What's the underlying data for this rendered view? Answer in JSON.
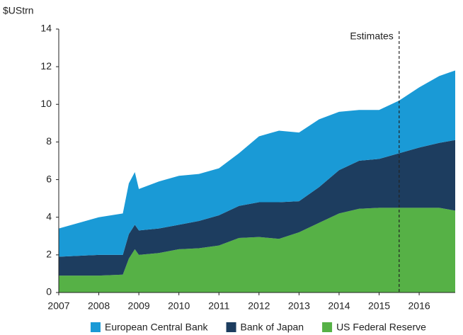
{
  "chart_data": {
    "type": "stacked_area",
    "y_label": "$UStrn",
    "annotation": {
      "text": "Estimates",
      "x": 2015.5
    },
    "x": [
      2007.0,
      2008.0,
      2008.6,
      2008.75,
      2008.9,
      2009.0,
      2009.5,
      2010.0,
      2010.5,
      2011.0,
      2011.5,
      2012.0,
      2012.5,
      2013.0,
      2013.5,
      2014.0,
      2014.5,
      2015.0,
      2015.5,
      2016.0,
      2016.5,
      2016.9
    ],
    "series": [
      {
        "name": "US Federal Reserve",
        "color": "#56b146",
        "values": [
          0.9,
          0.9,
          0.95,
          1.8,
          2.3,
          2.0,
          2.1,
          2.3,
          2.35,
          2.5,
          2.9,
          2.95,
          2.85,
          3.2,
          3.7,
          4.2,
          4.45,
          4.5,
          4.5,
          4.5,
          4.5,
          4.35
        ]
      },
      {
        "name": "Bank of Japan",
        "color": "#1d3d5f",
        "values": [
          1.0,
          1.1,
          1.05,
          1.3,
          1.3,
          1.3,
          1.3,
          1.3,
          1.45,
          1.6,
          1.7,
          1.85,
          1.95,
          1.65,
          1.9,
          2.3,
          2.55,
          2.6,
          2.9,
          3.2,
          3.45,
          3.75
        ]
      },
      {
        "name": "European Central Bank",
        "color": "#1a9ad6",
        "values": [
          1.5,
          2.0,
          2.2,
          2.7,
          2.8,
          2.2,
          2.5,
          2.6,
          2.5,
          2.5,
          2.8,
          3.5,
          3.8,
          3.65,
          3.6,
          3.1,
          2.7,
          2.6,
          2.8,
          3.2,
          3.55,
          3.7
        ]
      }
    ],
    "legend_order": [
      2,
      1,
      0
    ],
    "xlim": [
      2007,
      2016.9
    ],
    "xticks": [
      2007,
      2008,
      2009,
      2010,
      2011,
      2012,
      2013,
      2014,
      2015,
      2016
    ],
    "ylim": [
      0,
      14
    ],
    "yticks": [
      0,
      2,
      4,
      6,
      8,
      10,
      12,
      14
    ],
    "grid": false
  }
}
